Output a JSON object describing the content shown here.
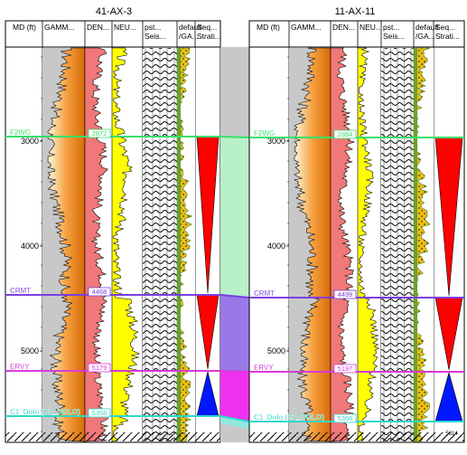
{
  "wells": [
    {
      "name": "41-AX-3",
      "columns": [
        "MD (ft)",
        "GAMM...",
        "DEN...",
        "NEU...",
        "pst... Seis...",
        "default /GA...",
        "Seq... Strati..."
      ],
      "depth_ticks": [
        "3000",
        "4000",
        "5000"
      ],
      "tops": [
        {
          "name": "F2WG",
          "depth": "2872"
        },
        {
          "name": "CRMT",
          "depth": "4468"
        },
        {
          "name": "ERVY",
          "depth": "5179"
        },
        {
          "name": "C1_Dolo (C1_DOLO)",
          "depth": "5358"
        }
      ]
    },
    {
      "name": "11-AX-11",
      "columns": [
        "MD (ft)",
        "GAMM...",
        "DEN...",
        "NEU...",
        "pst... Seis...",
        "default /GA...",
        "Seq... Strati..."
      ],
      "depth_ticks": [
        "3000",
        "4000",
        "5000"
      ],
      "tops": [
        {
          "name": "F2WG",
          "depth": "2884"
        },
        {
          "name": "CRMT",
          "depth": "4499"
        },
        {
          "name": "ERVY",
          "depth": "5197"
        },
        {
          "name": "C1_Dolo (C1_DOLO)",
          "depth": "5366"
        }
      ],
      "bottom_depth": "5814"
    }
  ],
  "colors": {
    "f2wg": "#3adf6a",
    "crmt": "#7a3fe0",
    "ervy": "#d83ad8",
    "c1": "#2ed8c8",
    "gamma": "#f08a1a",
    "density": "#f07878",
    "neutron": "#ffff00",
    "lith": "#f0c010",
    "seq_red": "#ff0000",
    "seq_blue": "#0018ff"
  }
}
